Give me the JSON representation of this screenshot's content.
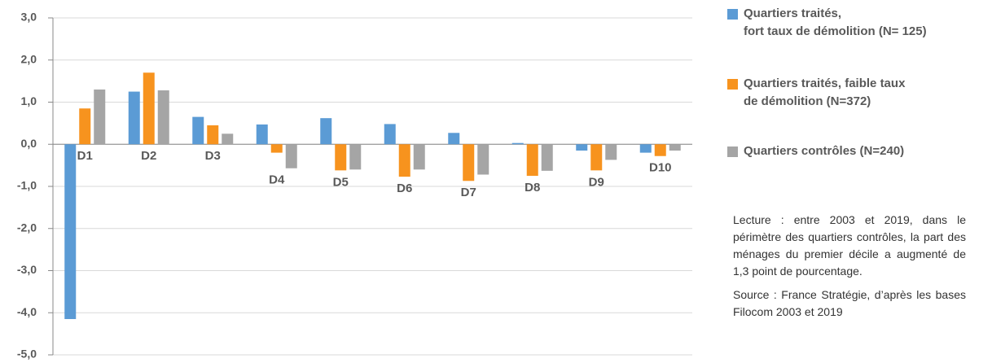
{
  "chart_data": {
    "type": "bar",
    "categories": [
      "D1",
      "D2",
      "D3",
      "D4",
      "D5",
      "D6",
      "D7",
      "D8",
      "D9",
      "D10"
    ],
    "series": [
      {
        "name": "Quartiers traités,\nfort taux de démolition  (N= 125)",
        "color": "#5b9bd5",
        "values": [
          -4.15,
          1.25,
          0.65,
          0.47,
          0.62,
          0.48,
          0.27,
          0.03,
          -0.15,
          -0.2
        ]
      },
      {
        "name": "Quartiers traités, faible taux\nde démolition (N=372)",
        "color": "#f7931e",
        "values": [
          0.85,
          1.7,
          0.45,
          -0.2,
          -0.62,
          -0.77,
          -0.87,
          -0.75,
          -0.62,
          -0.28
        ]
      },
      {
        "name": "Quartiers contrôles (N=240)",
        "color": "#a5a5a5",
        "values": [
          1.3,
          1.28,
          0.25,
          -0.57,
          -0.6,
          -0.6,
          -0.72,
          -0.63,
          -0.37,
          -0.15
        ]
      }
    ],
    "ylim": [
      -5,
      3
    ],
    "yticks": [
      {
        "value": -5,
        "label": "-5,0"
      },
      {
        "value": -4,
        "label": "-4,0"
      },
      {
        "value": -3,
        "label": "-3,0"
      },
      {
        "value": -2,
        "label": "-2,0"
      },
      {
        "value": -1,
        "label": "-1,0"
      },
      {
        "value": 0,
        "label": "0,0"
      },
      {
        "value": 1,
        "label": "1,0"
      },
      {
        "value": 2,
        "label": "2,0"
      },
      {
        "value": 3,
        "label": "3,0"
      }
    ],
    "grid": true,
    "notes": [
      "Lecture : entre 2003 et 2019, dans le périmètre des quartiers contrôles, la part des ménages du premier décile a augmenté de 1,3 point de pourcentage.",
      "Source : France Stratégie, d’après les bases Filocom 2003 et 2019"
    ]
  }
}
